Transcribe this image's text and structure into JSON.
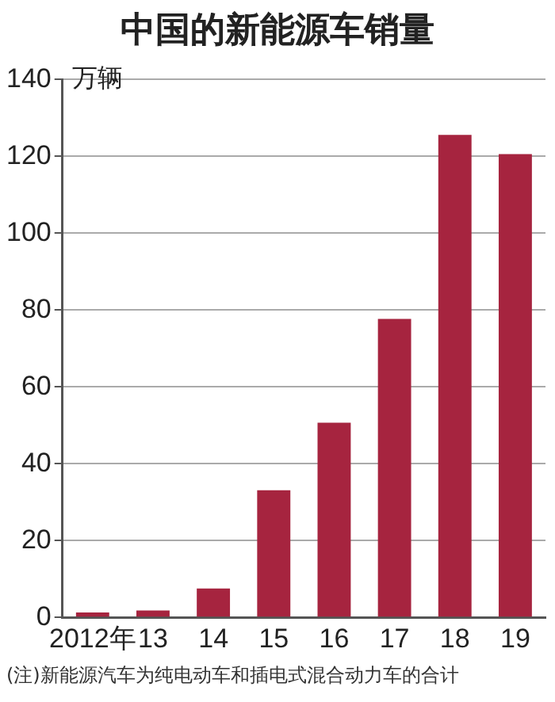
{
  "chart_data": {
    "type": "bar",
    "title": "中国的新能源车销量",
    "ylabel": "万辆",
    "categories": [
      "2012年",
      "13",
      "14",
      "15",
      "16",
      "17",
      "18",
      "19"
    ],
    "values": [
      1.3,
      1.8,
      7.5,
      33.1,
      50.7,
      77.7,
      125.6,
      120.6
    ],
    "color": "#a6243f",
    "ylim": [
      0,
      140
    ],
    "yticks": [
      0,
      20,
      40,
      60,
      80,
      100,
      120,
      140
    ],
    "grid": "y",
    "annotations": [
      "(注)新能源汽车为纯电动车和插电式混合动力车的合计"
    ]
  }
}
